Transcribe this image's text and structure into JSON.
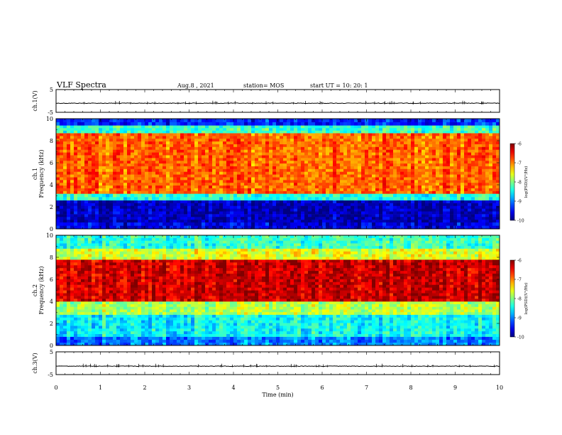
{
  "header": {
    "title": "VLF Spectra",
    "date": "Aug.8 , 2021",
    "station": "station= MOS",
    "start_time": "start UT = 10: 20: 1"
  },
  "chart_data": [
    {
      "type": "line",
      "ylabel": "ch.1(V)",
      "xlim": [
        0,
        10
      ],
      "ylim": [
        -5,
        5
      ],
      "yticks": [
        "5",
        "-5"
      ],
      "trace_level": -1
    },
    {
      "type": "heatmap",
      "ylabel": "ch.1\nFrequency (kHz)",
      "xlim": [
        0,
        10
      ],
      "ylim": [
        0,
        10
      ],
      "yticks": [
        "0",
        "2",
        "4",
        "6",
        "8",
        "10"
      ],
      "colorbar": {
        "label": "log(PSD)(V²/Hz)",
        "range": [
          -10,
          -6
        ],
        "ticks": [
          "-6",
          "-7",
          "-8",
          "-9",
          "-10"
        ]
      },
      "bands": [
        {
          "from": 0,
          "to": 0.6,
          "level": -9.6
        },
        {
          "from": 0.6,
          "to": 2.6,
          "level": -9.8
        },
        {
          "from": 2.6,
          "to": 3.2,
          "level": -8.4
        },
        {
          "from": 3.2,
          "to": 8.7,
          "level": -6.9
        },
        {
          "from": 8.7,
          "to": 9.4,
          "level": -8.3
        },
        {
          "from": 9.4,
          "to": 10,
          "level": -9.4
        }
      ]
    },
    {
      "type": "heatmap",
      "ylabel": "ch.2\nFrequency (kHz)",
      "xlim": [
        0,
        10
      ],
      "ylim": [
        0,
        10
      ],
      "yticks": [
        "0",
        "2",
        "4",
        "6",
        "8",
        "10"
      ],
      "colorbar": {
        "label": "log(PSD)(V²/Hz)",
        "range": [
          -10,
          -6
        ],
        "ticks": [
          "-6",
          "-7",
          "-8",
          "-9",
          "-10"
        ]
      },
      "bands": [
        {
          "from": 0,
          "to": 0.8,
          "level": -9.0
        },
        {
          "from": 0.8,
          "to": 2.8,
          "level": -8.5
        },
        {
          "from": 2.8,
          "to": 4.0,
          "level": -7.8
        },
        {
          "from": 4.0,
          "to": 7.8,
          "level": -6.3
        },
        {
          "from": 7.8,
          "to": 8.8,
          "level": -7.6
        },
        {
          "from": 8.8,
          "to": 10,
          "level": -8.3
        }
      ]
    },
    {
      "type": "line",
      "ylabel": "ch.3(V)",
      "xlim": [
        0,
        10
      ],
      "ylim": [
        -5,
        5
      ],
      "yticks": [
        "5",
        "-5"
      ],
      "trace_level": -1.3,
      "xlabel": "Time (min)",
      "xticks": [
        "0",
        "1",
        "2",
        "3",
        "4",
        "5",
        "6",
        "7",
        "8",
        "9",
        "10"
      ]
    }
  ]
}
